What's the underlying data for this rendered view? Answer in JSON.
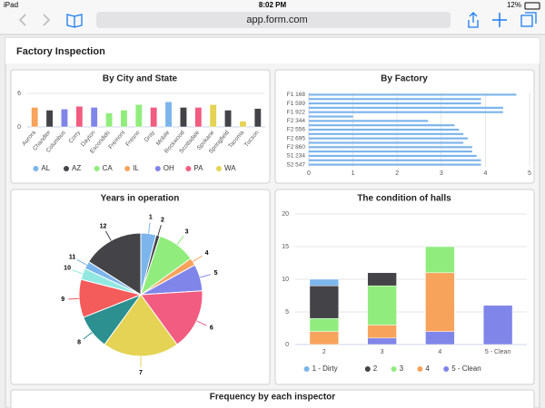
{
  "browser": {
    "device": "iPad",
    "time": "8:02 PM",
    "battery": "12%",
    "url": "app.form.com"
  },
  "header": {
    "title": "Factory Inspection"
  },
  "chart_data": [
    {
      "type": "bar",
      "title": "By City and State",
      "stacked": true,
      "legend": "bottom",
      "grid": true,
      "categories": [
        "Aurora",
        "Chandler",
        "Columbus",
        "Corry",
        "Dayton",
        "Escondido",
        "Fremont",
        "Fresno",
        "Gray",
        "Mobile",
        "Rockwood",
        "Scottsdale",
        "Spokane",
        "Springfield",
        "Tacoma",
        "Tucson"
      ],
      "series": [
        {
          "name": "AL",
          "color": "#7cb5ec",
          "values": [
            null,
            null,
            null,
            null,
            null,
            null,
            null,
            null,
            null,
            4.5,
            null,
            null,
            null,
            null,
            null,
            null
          ]
        },
        {
          "name": "AZ",
          "color": "#434348",
          "values": [
            null,
            3,
            null,
            null,
            null,
            null,
            null,
            null,
            null,
            null,
            3.5,
            null,
            null,
            3,
            null,
            3.3
          ]
        },
        {
          "name": "CA",
          "color": "#90ed7d",
          "values": [
            null,
            null,
            null,
            null,
            null,
            2.5,
            3,
            4,
            null,
            null,
            null,
            null,
            null,
            null,
            null,
            null
          ]
        },
        {
          "name": "IL",
          "color": "#f7a35c",
          "values": [
            3.5,
            null,
            null,
            null,
            null,
            null,
            null,
            null,
            null,
            null,
            null,
            null,
            null,
            null,
            null,
            null
          ]
        },
        {
          "name": "OH",
          "color": "#8085e9",
          "values": [
            null,
            null,
            3.2,
            null,
            3.5,
            null,
            null,
            null,
            null,
            null,
            null,
            null,
            null,
            null,
            null,
            null
          ]
        },
        {
          "name": "PA",
          "color": "#f15c80",
          "values": [
            null,
            null,
            null,
            3.7,
            null,
            null,
            null,
            null,
            3.5,
            null,
            null,
            3.5,
            null,
            null,
            null,
            null
          ]
        },
        {
          "name": "WA",
          "color": "#e4d354",
          "values": [
            null,
            null,
            null,
            null,
            null,
            null,
            null,
            null,
            null,
            null,
            null,
            null,
            4,
            null,
            1,
            null
          ]
        }
      ],
      "ylim": [
        0,
        6
      ],
      "yticks": [
        0,
        6
      ]
    },
    {
      "type": "bar",
      "title": "By Factory",
      "horizontal": true,
      "grid": true,
      "color": "#7cb5ec",
      "categories": [
        "F1 168",
        null,
        "F1 599",
        null,
        "F1 922",
        null,
        "F2 344",
        null,
        "F2 556",
        null,
        "F2 695",
        null,
        "F2 860",
        null,
        "S1 234",
        null,
        "S2 547"
      ],
      "values": [
        4.7,
        3.9,
        3.9,
        4.4,
        4.4,
        1,
        2.7,
        3.3,
        3.4,
        3.5,
        3.6,
        3.5,
        3.7,
        3.7,
        3.8,
        3.9,
        3.9
      ],
      "xlim": [
        0,
        5
      ],
      "xticks": [
        0,
        1,
        2,
        3,
        4,
        5
      ]
    },
    {
      "type": "pie",
      "title": "Years in operation",
      "categories": [
        "1",
        "2",
        "3",
        "4",
        "5",
        "6",
        "7",
        "8",
        "9",
        "10",
        "11",
        "12"
      ],
      "values": [
        4,
        1,
        10,
        2,
        7,
        16,
        20,
        9,
        10,
        3,
        2,
        16
      ],
      "colors": [
        "#7cb5ec",
        "#434348",
        "#90ed7d",
        "#f7a35c",
        "#8085e9",
        "#f15c80",
        "#e4d354",
        "#2b908f",
        "#f45b5b",
        "#91e8e1",
        "#7cb5ec",
        "#434348"
      ]
    },
    {
      "type": "bar",
      "title": "The condition of halls",
      "stacked": true,
      "legend": "bottom",
      "grid": true,
      "categories": [
        "2",
        "3",
        "4",
        "5 - Clean"
      ],
      "series": [
        {
          "name": "1 - Dirty",
          "color": "#7cb5ec",
          "values": [
            1,
            null,
            null,
            null
          ]
        },
        {
          "name": "2",
          "color": "#434348",
          "values": [
            5,
            2,
            null,
            null
          ]
        },
        {
          "name": "3",
          "color": "#90ed7d",
          "values": [
            2,
            6,
            4,
            null
          ]
        },
        {
          "name": "4",
          "color": "#f7a35c",
          "values": [
            2,
            2,
            9,
            null
          ]
        },
        {
          "name": "5 - Clean",
          "color": "#8085e9",
          "values": [
            null,
            1,
            2,
            6
          ]
        }
      ],
      "ylim": [
        0,
        20
      ],
      "yticks": [
        0,
        5,
        10,
        15,
        20
      ]
    }
  ],
  "partial_panel": {
    "title": "Frequency by each inspector"
  }
}
